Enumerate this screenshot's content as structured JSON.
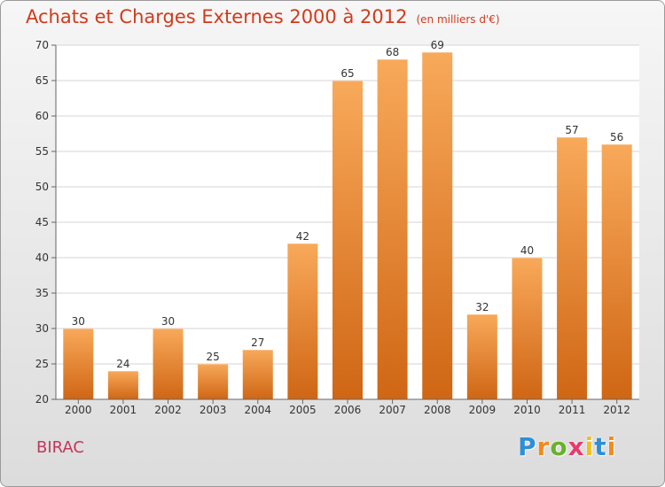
{
  "chart_data": {
    "type": "bar",
    "title": "Achats et Charges Externes 2000 à 2012",
    "subtitle": "(en milliers d'€)",
    "categories": [
      "2000",
      "2001",
      "2002",
      "2003",
      "2004",
      "2005",
      "2006",
      "2007",
      "2008",
      "2009",
      "2010",
      "2011",
      "2012"
    ],
    "values": [
      30,
      24,
      30,
      25,
      27,
      42,
      65,
      68,
      69,
      32,
      40,
      57,
      56
    ],
    "ylim": [
      20,
      70
    ],
    "yticks": [
      20,
      25,
      30,
      35,
      40,
      45,
      50,
      55,
      60,
      65,
      70
    ],
    "grid": true,
    "bar_color_top": "#f8a95a",
    "bar_color_bottom": "#cf6614"
  },
  "commune": "BIRAC",
  "logo": {
    "letters": [
      "P",
      "r",
      "o",
      "x",
      "i",
      "t",
      "i"
    ],
    "colors": [
      "#2f8fd4",
      "#f28a1b",
      "#67b22d",
      "#e83a6e",
      "#f2c01b",
      "#2f8fd4",
      "#f28a1b"
    ]
  }
}
